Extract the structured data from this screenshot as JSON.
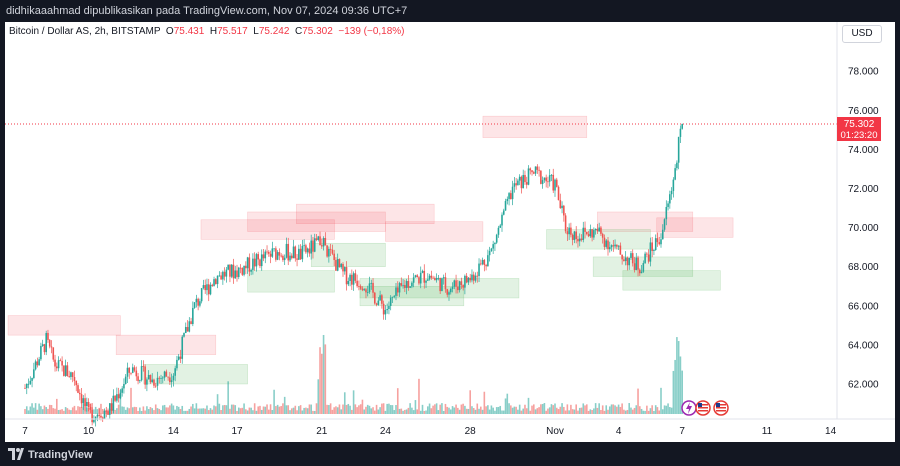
{
  "header": {
    "publisher": "didhikaaahmad dipublikasikan pada TradingView.com, Nov 07, 2024 09:36 UTC+7"
  },
  "legend": {
    "symbol": "Bitcoin / Dollar AS, 2h, BITSTAMP",
    "o_label": "O",
    "o_value": "75.431",
    "h_label": "H",
    "h_value": "75.517",
    "l_label": "L",
    "l_value": "75.242",
    "c_label": "C",
    "c_value": "75.302",
    "change": "−139 (−0,18%)"
  },
  "currency": "USD",
  "footer": {
    "brand": "TradingView"
  },
  "price_tag": {
    "price": "75.302",
    "countdown": "01:23:20"
  },
  "colors": {
    "up": "#26a69a",
    "down": "#ef5350",
    "supply": "#f23645",
    "demand": "#4caf50",
    "text": "#131722"
  },
  "icons": [
    "flash-event-icon",
    "us-flag-icon",
    "us-flag-icon"
  ],
  "chart_data": {
    "type": "candlestick",
    "timeframe": "2h",
    "ylim": [
      60000,
      80000
    ],
    "y_ticks": [
      "62.000",
      "64.000",
      "66.000",
      "68.000",
      "70.000",
      "72.000",
      "74.000",
      "76.000",
      "78.000"
    ],
    "x_ticks": [
      {
        "day": 0,
        "label": "7"
      },
      {
        "day": 3,
        "label": "10"
      },
      {
        "day": 7,
        "label": "14"
      },
      {
        "day": 10,
        "label": "17"
      },
      {
        "day": 14,
        "label": "21"
      },
      {
        "day": 17,
        "label": "24"
      },
      {
        "day": 21,
        "label": "28"
      },
      {
        "day": 25,
        "label": "Nov"
      },
      {
        "day": 28,
        "label": "4"
      },
      {
        "day": 31,
        "label": "7"
      },
      {
        "day": 35,
        "label": "11"
      },
      {
        "day": 38,
        "label": "14"
      }
    ],
    "path": [
      [
        0,
        61800
      ],
      [
        1.0,
        64200
      ],
      [
        1.4,
        63000
      ],
      [
        2.3,
        62400
      ],
      [
        3.0,
        60400
      ],
      [
        4.0,
        60700
      ],
      [
        5.0,
        62800
      ],
      [
        6.0,
        62200
      ],
      [
        7.0,
        62600
      ],
      [
        8.0,
        66000
      ],
      [
        9.0,
        67500
      ],
      [
        10.0,
        67800
      ],
      [
        11.0,
        68300
      ],
      [
        12.0,
        68800
      ],
      [
        13.0,
        68600
      ],
      [
        14.0,
        69300
      ],
      [
        15.0,
        67600
      ],
      [
        16.0,
        67200
      ],
      [
        17.0,
        65800
      ],
      [
        18.0,
        67200
      ],
      [
        19.0,
        67600
      ],
      [
        20.0,
        66900
      ],
      [
        21.0,
        67400
      ],
      [
        22.0,
        68800
      ],
      [
        23.0,
        72000
      ],
      [
        24.0,
        72800
      ],
      [
        25.0,
        72200
      ],
      [
        25.5,
        70000
      ],
      [
        26.0,
        69600
      ],
      [
        27.0,
        69800
      ],
      [
        28.0,
        68700
      ],
      [
        29.0,
        68000
      ],
      [
        30.0,
        69600
      ],
      [
        30.5,
        72000
      ],
      [
        31.0,
        75300
      ]
    ],
    "zones": [
      {
        "kind": "supply",
        "x0": -0.8,
        "x1": 4.5,
        "y0": 64500,
        "y1": 65500
      },
      {
        "kind": "supply",
        "x0": 4.3,
        "x1": 9.0,
        "y0": 63500,
        "y1": 64500
      },
      {
        "kind": "supply",
        "x0": 8.3,
        "x1": 14.6,
        "y0": 69400,
        "y1": 70400
      },
      {
        "kind": "supply",
        "x0": 10.5,
        "x1": 17.0,
        "y0": 69800,
        "y1": 70800
      },
      {
        "kind": "supply",
        "x0": 12.8,
        "x1": 19.3,
        "y0": 70200,
        "y1": 71200
      },
      {
        "kind": "supply",
        "x0": 17.0,
        "x1": 21.6,
        "y0": 69300,
        "y1": 70300
      },
      {
        "kind": "supply",
        "x0": 21.6,
        "x1": 26.5,
        "y0": 74600,
        "y1": 75700
      },
      {
        "kind": "supply",
        "x0": 27.0,
        "x1": 31.5,
        "y0": 69800,
        "y1": 70800
      },
      {
        "kind": "supply",
        "x0": 29.8,
        "x1": 33.4,
        "y0": 69500,
        "y1": 70500
      },
      {
        "kind": "demand",
        "x0": 5.6,
        "x1": 10.5,
        "y0": 62000,
        "y1": 63000
      },
      {
        "kind": "demand",
        "x0": 10.5,
        "x1": 14.6,
        "y0": 66700,
        "y1": 67800
      },
      {
        "kind": "demand",
        "x0": 13.5,
        "x1": 17.0,
        "y0": 68000,
        "y1": 69200
      },
      {
        "kind": "demand",
        "x0": 15.8,
        "x1": 20.7,
        "y0": 66000,
        "y1": 67000
      },
      {
        "kind": "demand",
        "x0": 15.8,
        "x1": 23.3,
        "y0": 66400,
        "y1": 67400
      },
      {
        "kind": "demand",
        "x0": 24.6,
        "x1": 29.5,
        "y0": 68900,
        "y1": 69900
      },
      {
        "kind": "demand",
        "x0": 26.8,
        "x1": 31.5,
        "y0": 67500,
        "y1": 68500
      },
      {
        "kind": "demand",
        "x0": 28.2,
        "x1": 32.8,
        "y0": 66800,
        "y1": 67800
      }
    ],
    "last_price": 75302
  }
}
